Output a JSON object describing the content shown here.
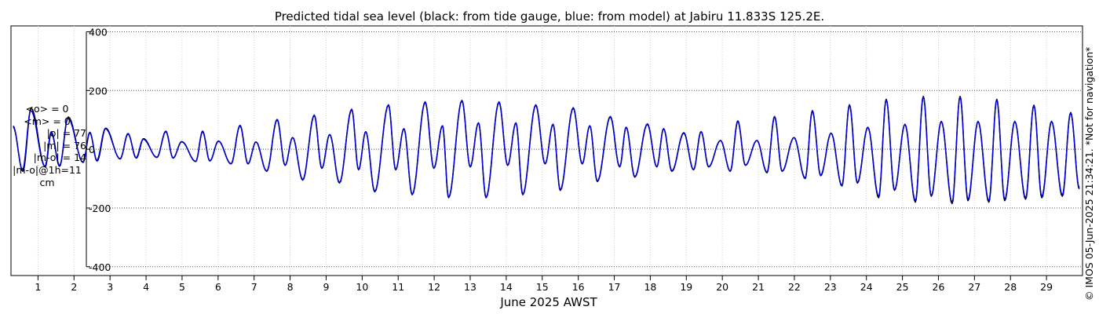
{
  "chart_data": {
    "type": "line",
    "title": "Predicted tidal sea level (black: from tide gauge, blue: from model) at Jabiru 11.833S 125.2E.",
    "xlabel": "June 2025 AWST",
    "ylabel": "",
    "x_unit": "day of June 2025 (AWST)",
    "xlim": [
      0.25,
      30.0
    ],
    "ylim": [
      -430,
      420
    ],
    "yticks": [
      -400,
      -200,
      0,
      200,
      400
    ],
    "xticks": [
      1,
      2,
      3,
      4,
      5,
      6,
      7,
      8,
      9,
      10,
      11,
      12,
      13,
      14,
      15,
      16,
      17,
      18,
      19,
      20,
      21,
      22,
      23,
      24,
      25,
      26,
      27,
      28,
      29
    ],
    "grid": true,
    "series": [
      {
        "name": "from tide gauge",
        "color": "#000000",
        "peaks": [
          [
            0.31,
            76
          ],
          [
            0.58,
            -75
          ],
          [
            0.81,
            140
          ],
          [
            1.2,
            -60
          ],
          [
            1.37,
            56
          ],
          [
            1.6,
            -58
          ],
          [
            1.84,
            110
          ],
          [
            2.25,
            -45
          ],
          [
            2.44,
            56
          ],
          [
            2.64,
            -40
          ],
          [
            2.88,
            72
          ],
          [
            3.28,
            -33
          ],
          [
            3.5,
            52
          ],
          [
            3.73,
            -30
          ],
          [
            3.93,
            36
          ],
          [
            4.3,
            -28
          ],
          [
            4.55,
            60
          ],
          [
            4.75,
            -30
          ],
          [
            4.99,
            26
          ],
          [
            5.38,
            -42
          ],
          [
            5.57,
            60
          ],
          [
            5.77,
            -40
          ],
          [
            6.01,
            28
          ],
          [
            6.36,
            -50
          ],
          [
            6.61,
            80
          ],
          [
            6.83,
            -50
          ],
          [
            7.05,
            25
          ],
          [
            7.35,
            -75
          ],
          [
            7.64,
            100
          ],
          [
            7.86,
            -55
          ],
          [
            8.07,
            40
          ],
          [
            8.35,
            -105
          ],
          [
            8.67,
            115
          ],
          [
            8.88,
            -65
          ],
          [
            9.1,
            50
          ],
          [
            9.37,
            -115
          ],
          [
            9.71,
            135
          ],
          [
            9.9,
            -70
          ],
          [
            10.1,
            60
          ],
          [
            10.35,
            -145
          ],
          [
            10.73,
            150
          ],
          [
            10.93,
            -70
          ],
          [
            11.16,
            70
          ],
          [
            11.39,
            -155
          ],
          [
            11.75,
            160
          ],
          [
            11.99,
            -65
          ],
          [
            12.23,
            80
          ],
          [
            12.4,
            -165
          ],
          [
            12.77,
            165
          ],
          [
            13.0,
            -60
          ],
          [
            13.23,
            90
          ],
          [
            13.44,
            -165
          ],
          [
            13.8,
            160
          ],
          [
            14.04,
            -55
          ],
          [
            14.27,
            90
          ],
          [
            14.46,
            -155
          ],
          [
            14.82,
            150
          ],
          [
            15.08,
            -50
          ],
          [
            15.3,
            85
          ],
          [
            15.5,
            -140
          ],
          [
            15.86,
            140
          ],
          [
            16.11,
            -50
          ],
          [
            16.32,
            80
          ],
          [
            16.53,
            -110
          ],
          [
            16.89,
            110
          ],
          [
            17.15,
            -60
          ],
          [
            17.33,
            75
          ],
          [
            17.57,
            -95
          ],
          [
            17.92,
            85
          ],
          [
            18.18,
            -60
          ],
          [
            18.37,
            70
          ],
          [
            18.6,
            -75
          ],
          [
            18.93,
            55
          ],
          [
            19.2,
            -70
          ],
          [
            19.41,
            60
          ],
          [
            19.62,
            -60
          ],
          [
            19.95,
            30
          ],
          [
            20.22,
            -75
          ],
          [
            20.43,
            95
          ],
          [
            20.64,
            -55
          ],
          [
            20.96,
            30
          ],
          [
            21.24,
            -80
          ],
          [
            21.45,
            110
          ],
          [
            21.66,
            -75
          ],
          [
            21.99,
            40
          ],
          [
            22.3,
            -100
          ],
          [
            22.5,
            130
          ],
          [
            22.73,
            -90
          ],
          [
            23.02,
            55
          ],
          [
            23.32,
            -125
          ],
          [
            23.53,
            150
          ],
          [
            23.75,
            -115
          ],
          [
            24.04,
            75
          ],
          [
            24.34,
            -165
          ],
          [
            24.55,
            170
          ],
          [
            24.78,
            -140
          ],
          [
            25.07,
            85
          ],
          [
            25.36,
            -180
          ],
          [
            25.58,
            180
          ],
          [
            25.8,
            -160
          ],
          [
            26.08,
            95
          ],
          [
            26.38,
            -185
          ],
          [
            26.6,
            180
          ],
          [
            26.82,
            -175
          ],
          [
            27.1,
            95
          ],
          [
            27.4,
            -180
          ],
          [
            27.62,
            170
          ],
          [
            27.84,
            -175
          ],
          [
            28.12,
            95
          ],
          [
            28.42,
            -170
          ],
          [
            28.65,
            150
          ],
          [
            28.87,
            -165
          ],
          [
            29.14,
            95
          ],
          [
            29.44,
            -160
          ],
          [
            29.67,
            125
          ],
          [
            29.91,
            -135
          ]
        ]
      },
      {
        "name": "from model",
        "color": "#0000e6",
        "peaks": [
          [
            0.31,
            80
          ],
          [
            0.57,
            -70
          ],
          [
            0.8,
            132
          ],
          [
            1.19,
            -58
          ],
          [
            1.37,
            60
          ],
          [
            1.6,
            -55
          ],
          [
            1.83,
            106
          ],
          [
            2.25,
            -43
          ],
          [
            2.44,
            58
          ],
          [
            2.63,
            -38
          ],
          [
            2.87,
            70
          ],
          [
            3.28,
            -32
          ],
          [
            3.5,
            54
          ],
          [
            3.72,
            -29
          ],
          [
            3.92,
            34
          ],
          [
            4.3,
            -27
          ],
          [
            4.55,
            62
          ],
          [
            4.75,
            -29
          ],
          [
            4.99,
            25
          ],
          [
            5.38,
            -41
          ],
          [
            5.57,
            62
          ],
          [
            5.77,
            -39
          ],
          [
            6.01,
            27
          ],
          [
            6.36,
            -49
          ],
          [
            6.61,
            82
          ],
          [
            6.83,
            -49
          ],
          [
            7.05,
            25
          ],
          [
            7.35,
            -74
          ],
          [
            7.64,
            102
          ],
          [
            7.86,
            -54
          ],
          [
            8.07,
            40
          ],
          [
            8.35,
            -103
          ],
          [
            8.67,
            117
          ],
          [
            8.88,
            -64
          ],
          [
            9.1,
            50
          ],
          [
            9.37,
            -113
          ],
          [
            9.71,
            137
          ],
          [
            9.9,
            -69
          ],
          [
            10.1,
            60
          ],
          [
            10.35,
            -143
          ],
          [
            10.73,
            152
          ],
          [
            10.93,
            -69
          ],
          [
            11.16,
            70
          ],
          [
            11.39,
            -153
          ],
          [
            11.75,
            162
          ],
          [
            11.99,
            -64
          ],
          [
            12.23,
            80
          ],
          [
            12.4,
            -163
          ],
          [
            12.77,
            167
          ],
          [
            13.0,
            -59
          ],
          [
            13.23,
            90
          ],
          [
            13.44,
            -163
          ],
          [
            13.8,
            162
          ],
          [
            14.04,
            -54
          ],
          [
            14.27,
            90
          ],
          [
            14.46,
            -153
          ],
          [
            14.82,
            152
          ],
          [
            15.08,
            -49
          ],
          [
            15.3,
            85
          ],
          [
            15.5,
            -138
          ],
          [
            15.86,
            142
          ],
          [
            16.11,
            -49
          ],
          [
            16.32,
            80
          ],
          [
            16.53,
            -108
          ],
          [
            16.89,
            112
          ],
          [
            17.15,
            -59
          ],
          [
            17.33,
            75
          ],
          [
            17.57,
            -93
          ],
          [
            17.92,
            87
          ],
          [
            18.18,
            -59
          ],
          [
            18.37,
            70
          ],
          [
            18.6,
            -73
          ],
          [
            18.93,
            57
          ],
          [
            19.2,
            -69
          ],
          [
            19.41,
            60
          ],
          [
            19.62,
            -59
          ],
          [
            19.95,
            30
          ],
          [
            20.22,
            -74
          ],
          [
            20.43,
            97
          ],
          [
            20.64,
            -54
          ],
          [
            20.96,
            30
          ],
          [
            21.24,
            -78
          ],
          [
            21.45,
            112
          ],
          [
            21.66,
            -74
          ],
          [
            21.99,
            40
          ],
          [
            22.3,
            -98
          ],
          [
            22.5,
            132
          ],
          [
            22.73,
            -88
          ],
          [
            23.02,
            55
          ],
          [
            23.32,
            -123
          ],
          [
            23.53,
            152
          ],
          [
            23.75,
            -113
          ],
          [
            24.04,
            75
          ],
          [
            24.34,
            -160
          ],
          [
            24.55,
            168
          ],
          [
            24.78,
            -138
          ],
          [
            25.07,
            85
          ],
          [
            25.36,
            -175
          ],
          [
            25.58,
            178
          ],
          [
            25.8,
            -158
          ],
          [
            26.08,
            95
          ],
          [
            26.38,
            -180
          ],
          [
            26.6,
            178
          ],
          [
            26.82,
            -170
          ],
          [
            27.1,
            95
          ],
          [
            27.4,
            -175
          ],
          [
            27.62,
            168
          ],
          [
            27.84,
            -170
          ],
          [
            28.12,
            95
          ],
          [
            28.42,
            -165
          ],
          [
            28.65,
            148
          ],
          [
            28.87,
            -160
          ],
          [
            29.14,
            95
          ],
          [
            29.44,
            -155
          ],
          [
            29.67,
            123
          ],
          [
            29.91,
            -130
          ]
        ]
      }
    ]
  },
  "stats": {
    "mean_obs": "<o> = 0",
    "mean_model": "<m> = 0",
    "abs_obs": "|o| = 77",
    "abs_model": "|m| = 76",
    "abs_diff": "|m-o| = 14",
    "abs_diff_1h": "|m-o|@1h=11",
    "unit": "cm"
  },
  "side_note": "© IMOS 05-Jun-2025 21:34:21. *Not for navigation*"
}
